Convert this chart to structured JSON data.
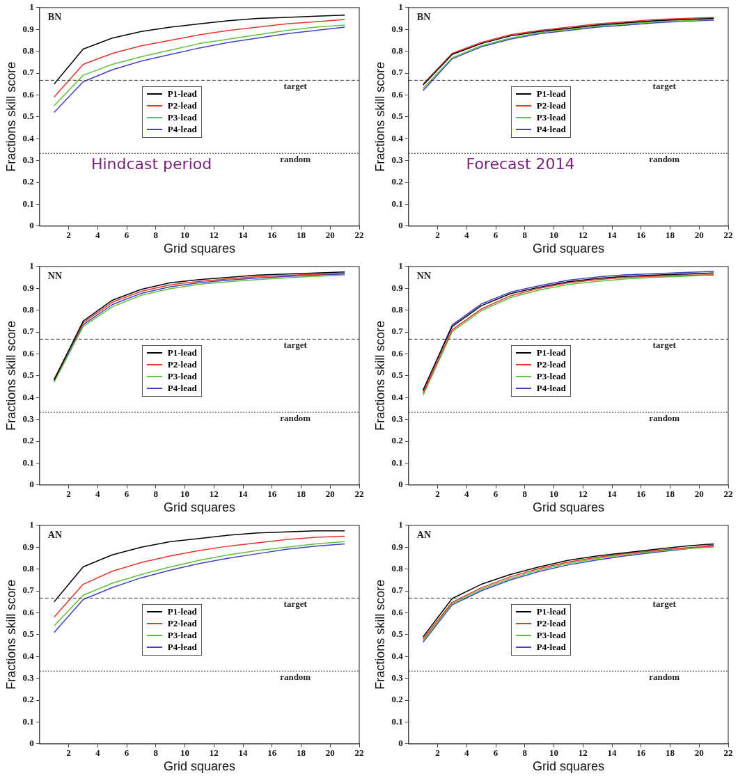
{
  "chart_data": [
    {
      "type": "line",
      "x": [
        1,
        3,
        5,
        7,
        9,
        11,
        13,
        15,
        17,
        19,
        21
      ],
      "xlabel": "Grid squares",
      "ylabel": "Fractions skill score",
      "annotations": [
        "BN",
        "Hindcast period"
      ],
      "xlim": [
        0,
        22
      ],
      "ylim": [
        0,
        1
      ],
      "xticks": [
        2,
        4,
        6,
        8,
        10,
        12,
        14,
        16,
        18,
        20,
        22
      ],
      "yticks": [
        0,
        0.1,
        0.2,
        0.3,
        0.4,
        0.5,
        0.6,
        0.7,
        0.8,
        0.9,
        1
      ],
      "grid": false,
      "legend": "left",
      "line_style": "solid",
      "marker": "none",
      "ref_lines": [
        {
          "axis": "y",
          "value": 0.667,
          "label": "target",
          "line_style": "dashed"
        },
        {
          "axis": "y",
          "value": 0.333,
          "label": "random",
          "line_style": "dotted"
        }
      ],
      "series": [
        {
          "name": "P1-lead",
          "color": "#000000",
          "values": [
            0.65,
            0.81,
            0.86,
            0.89,
            0.91,
            0.925,
            0.94,
            0.95,
            0.955,
            0.96,
            0.965
          ]
        },
        {
          "name": "P2-lead",
          "color": "#e8332a",
          "values": [
            0.59,
            0.74,
            0.79,
            0.825,
            0.85,
            0.875,
            0.895,
            0.91,
            0.925,
            0.935,
            0.945
          ]
        },
        {
          "name": "P3-lead",
          "color": "#5cc43c",
          "values": [
            0.55,
            0.69,
            0.74,
            0.775,
            0.805,
            0.835,
            0.855,
            0.875,
            0.895,
            0.91,
            0.92
          ]
        },
        {
          "name": "P4-lead",
          "color": "#3f3fc8",
          "values": [
            0.52,
            0.66,
            0.715,
            0.755,
            0.785,
            0.815,
            0.84,
            0.86,
            0.88,
            0.895,
            0.91
          ]
        }
      ]
    },
    {
      "type": "line",
      "x": [
        1,
        3,
        5,
        7,
        9,
        11,
        13,
        15,
        17,
        19,
        21
      ],
      "xlabel": "Grid squares",
      "ylabel": "Fractions skill score",
      "annotations": [
        "BN",
        "Forecast 2014"
      ],
      "xlim": [
        0,
        22
      ],
      "ylim": [
        0,
        1
      ],
      "xticks": [
        2,
        4,
        6,
        8,
        10,
        12,
        14,
        16,
        18,
        20,
        22
      ],
      "yticks": [
        0,
        0.1,
        0.2,
        0.3,
        0.4,
        0.5,
        0.6,
        0.7,
        0.8,
        0.9,
        1
      ],
      "grid": false,
      "legend": "left",
      "line_style": "solid",
      "marker": "none",
      "ref_lines": [
        {
          "axis": "y",
          "value": 0.667,
          "label": "target",
          "line_style": "dashed"
        },
        {
          "axis": "y",
          "value": 0.333,
          "label": "random",
          "line_style": "dotted"
        }
      ],
      "series": [
        {
          "name": "P1-lead",
          "color": "#000000",
          "values": [
            0.645,
            0.785,
            0.835,
            0.87,
            0.89,
            0.905,
            0.92,
            0.93,
            0.94,
            0.945,
            0.95
          ]
        },
        {
          "name": "P2-lead",
          "color": "#e8332a",
          "values": [
            0.65,
            0.79,
            0.84,
            0.875,
            0.895,
            0.91,
            0.925,
            0.935,
            0.945,
            0.95,
            0.955
          ]
        },
        {
          "name": "P3-lead",
          "color": "#5cc43c",
          "values": [
            0.63,
            0.77,
            0.825,
            0.86,
            0.885,
            0.9,
            0.915,
            0.925,
            0.935,
            0.94,
            0.945
          ]
        },
        {
          "name": "P4-lead",
          "color": "#3f3fc8",
          "values": [
            0.62,
            0.765,
            0.82,
            0.855,
            0.88,
            0.895,
            0.91,
            0.92,
            0.93,
            0.937,
            0.942
          ]
        }
      ]
    },
    {
      "type": "line",
      "x": [
        1,
        3,
        5,
        7,
        9,
        11,
        13,
        15,
        17,
        19,
        21
      ],
      "xlabel": "Grid squares",
      "ylabel": "Fractions skill score",
      "annotations": [
        "NN"
      ],
      "xlim": [
        0,
        22
      ],
      "ylim": [
        0,
        1
      ],
      "xticks": [
        2,
        4,
        6,
        8,
        10,
        12,
        14,
        16,
        18,
        20,
        22
      ],
      "yticks": [
        0,
        0.1,
        0.2,
        0.3,
        0.4,
        0.5,
        0.6,
        0.7,
        0.8,
        0.9,
        1
      ],
      "grid": false,
      "legend": "left",
      "line_style": "solid",
      "marker": "none",
      "ref_lines": [
        {
          "axis": "y",
          "value": 0.667,
          "label": "target",
          "line_style": "dashed"
        },
        {
          "axis": "y",
          "value": 0.333,
          "label": "random",
          "line_style": "dotted"
        }
      ],
      "series": [
        {
          "name": "P1-lead",
          "color": "#000000",
          "values": [
            0.48,
            0.75,
            0.845,
            0.895,
            0.925,
            0.94,
            0.95,
            0.96,
            0.965,
            0.97,
            0.975
          ]
        },
        {
          "name": "P2-lead",
          "color": "#e8332a",
          "values": [
            0.485,
            0.742,
            0.836,
            0.886,
            0.916,
            0.932,
            0.943,
            0.953,
            0.959,
            0.964,
            0.969
          ]
        },
        {
          "name": "P3-lead",
          "color": "#5cc43c",
          "values": [
            0.47,
            0.725,
            0.815,
            0.868,
            0.898,
            0.918,
            0.93,
            0.94,
            0.948,
            0.955,
            0.96
          ]
        },
        {
          "name": "P4-lead",
          "color": "#3f3fc8",
          "values": [
            0.475,
            0.733,
            0.825,
            0.877,
            0.907,
            0.925,
            0.937,
            0.947,
            0.954,
            0.96,
            0.965
          ]
        }
      ]
    },
    {
      "type": "line",
      "x": [
        1,
        3,
        5,
        7,
        9,
        11,
        13,
        15,
        17,
        19,
        21
      ],
      "xlabel": "Grid squares",
      "ylabel": "Fractions skill score",
      "annotations": [
        "NN"
      ],
      "xlim": [
        0,
        22
      ],
      "ylim": [
        0,
        1
      ],
      "xticks": [
        2,
        4,
        6,
        8,
        10,
        12,
        14,
        16,
        18,
        20,
        22
      ],
      "yticks": [
        0,
        0.1,
        0.2,
        0.3,
        0.4,
        0.5,
        0.6,
        0.7,
        0.8,
        0.9,
        1
      ],
      "grid": false,
      "legend": "left",
      "line_style": "solid",
      "marker": "none",
      "ref_lines": [
        {
          "axis": "y",
          "value": 0.667,
          "label": "target",
          "line_style": "dashed"
        },
        {
          "axis": "y",
          "value": 0.333,
          "label": "random",
          "line_style": "dotted"
        }
      ],
      "series": [
        {
          "name": "P1-lead",
          "color": "#000000",
          "values": [
            0.435,
            0.725,
            0.82,
            0.875,
            0.905,
            0.93,
            0.945,
            0.955,
            0.96,
            0.965,
            0.97
          ]
        },
        {
          "name": "P2-lead",
          "color": "#e8332a",
          "values": [
            0.42,
            0.71,
            0.805,
            0.865,
            0.9,
            0.925,
            0.94,
            0.95,
            0.955,
            0.96,
            0.96
          ]
        },
        {
          "name": "P3-lead",
          "color": "#5cc43c",
          "values": [
            0.41,
            0.702,
            0.797,
            0.857,
            0.892,
            0.917,
            0.932,
            0.943,
            0.95,
            0.955,
            0.963
          ]
        },
        {
          "name": "P4-lead",
          "color": "#3f3fc8",
          "values": [
            0.43,
            0.732,
            0.828,
            0.882,
            0.912,
            0.937,
            0.952,
            0.962,
            0.967,
            0.972,
            0.977
          ]
        }
      ]
    },
    {
      "type": "line",
      "x": [
        1,
        3,
        5,
        7,
        9,
        11,
        13,
        15,
        17,
        19,
        21
      ],
      "xlabel": "Grid squares",
      "ylabel": "Fractions skill score",
      "annotations": [
        "AN"
      ],
      "xlim": [
        0,
        22
      ],
      "ylim": [
        0,
        1
      ],
      "xticks": [
        2,
        4,
        6,
        8,
        10,
        12,
        14,
        16,
        18,
        20,
        22
      ],
      "yticks": [
        0,
        0.1,
        0.2,
        0.3,
        0.4,
        0.5,
        0.6,
        0.7,
        0.8,
        0.9,
        1
      ],
      "grid": false,
      "legend": "left",
      "line_style": "solid",
      "marker": "none",
      "ref_lines": [
        {
          "axis": "y",
          "value": 0.667,
          "label": "target",
          "line_style": "dashed"
        },
        {
          "axis": "y",
          "value": 0.333,
          "label": "random",
          "line_style": "dotted"
        }
      ],
      "series": [
        {
          "name": "P1-lead",
          "color": "#000000",
          "values": [
            0.65,
            0.81,
            0.865,
            0.9,
            0.925,
            0.94,
            0.955,
            0.965,
            0.97,
            0.975,
            0.975
          ]
        },
        {
          "name": "P2-lead",
          "color": "#e8332a",
          "values": [
            0.58,
            0.73,
            0.79,
            0.83,
            0.86,
            0.885,
            0.905,
            0.92,
            0.935,
            0.945,
            0.95
          ]
        },
        {
          "name": "P3-lead",
          "color": "#5cc43c",
          "values": [
            0.54,
            0.68,
            0.735,
            0.775,
            0.81,
            0.84,
            0.865,
            0.885,
            0.9,
            0.915,
            0.925
          ]
        },
        {
          "name": "P4-lead",
          "color": "#3f3fc8",
          "values": [
            0.51,
            0.66,
            0.715,
            0.76,
            0.795,
            0.825,
            0.85,
            0.87,
            0.89,
            0.905,
            0.915
          ]
        }
      ]
    },
    {
      "type": "line",
      "x": [
        1,
        3,
        5,
        7,
        9,
        11,
        13,
        15,
        17,
        19,
        21
      ],
      "xlabel": "Grid squares",
      "ylabel": "Fractions skill score",
      "annotations": [
        "AN"
      ],
      "xlim": [
        0,
        22
      ],
      "ylim": [
        0,
        1
      ],
      "xticks": [
        2,
        4,
        6,
        8,
        10,
        12,
        14,
        16,
        18,
        20,
        22
      ],
      "yticks": [
        0,
        0.1,
        0.2,
        0.3,
        0.4,
        0.5,
        0.6,
        0.7,
        0.8,
        0.9,
        1
      ],
      "grid": false,
      "legend": "left",
      "line_style": "solid",
      "marker": "none",
      "ref_lines": [
        {
          "axis": "y",
          "value": 0.667,
          "label": "target",
          "line_style": "dashed"
        },
        {
          "axis": "y",
          "value": 0.333,
          "label": "random",
          "line_style": "dotted"
        }
      ],
      "series": [
        {
          "name": "P1-lead",
          "color": "#000000",
          "values": [
            0.49,
            0.665,
            0.73,
            0.775,
            0.81,
            0.84,
            0.86,
            0.875,
            0.89,
            0.905,
            0.915
          ]
        },
        {
          "name": "P2-lead",
          "color": "#e8332a",
          "values": [
            0.48,
            0.648,
            0.714,
            0.764,
            0.803,
            0.832,
            0.854,
            0.871,
            0.885,
            0.897,
            0.905
          ]
        },
        {
          "name": "P3-lead",
          "color": "#5cc43c",
          "values": [
            0.472,
            0.642,
            0.707,
            0.757,
            0.796,
            0.826,
            0.848,
            0.866,
            0.881,
            0.893,
            0.9
          ]
        },
        {
          "name": "P4-lead",
          "color": "#3f3fc8",
          "values": [
            0.465,
            0.636,
            0.7,
            0.75,
            0.789,
            0.819,
            0.842,
            0.861,
            0.877,
            0.891,
            0.91
          ]
        }
      ]
    }
  ]
}
